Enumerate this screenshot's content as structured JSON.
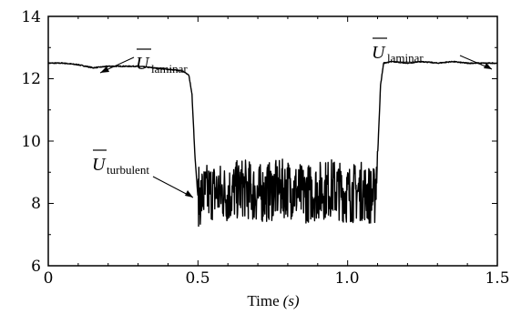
{
  "chart_data": {
    "type": "line",
    "title": "",
    "xlabel": "Time",
    "xlabel_unit": "(s)",
    "ylabel": "",
    "xlim": [
      0,
      1.5
    ],
    "ylim": [
      6,
      14
    ],
    "x_ticks": [
      "0",
      "0.5",
      "1.0",
      "1.5"
    ],
    "y_ticks": [
      "6",
      "8",
      "10",
      "12",
      "14"
    ],
    "grid": false,
    "series": [
      {
        "x": [
          0,
          0.05,
          0.1,
          0.15,
          0.2,
          0.25,
          0.3,
          0.35,
          0.4,
          0.45,
          0.47,
          0.48,
          0.49,
          0.5,
          0.55,
          0.6,
          0.65,
          0.7,
          0.75,
          0.8,
          0.85,
          0.9,
          0.95,
          1.0,
          1.05,
          1.09,
          1.1,
          1.11,
          1.12,
          1.15,
          1.2,
          1.25,
          1.3,
          1.35,
          1.4,
          1.45,
          1.5
        ],
        "y": [
          12.5,
          12.5,
          12.45,
          12.35,
          12.4,
          12.4,
          12.4,
          12.35,
          12.3,
          12.25,
          12.1,
          11.5,
          9.5,
          8.2,
          8.4,
          8.3,
          8.5,
          8.3,
          8.4,
          8.5,
          8.3,
          8.4,
          8.5,
          8.3,
          8.4,
          8.2,
          9.5,
          11.8,
          12.5,
          12.55,
          12.5,
          12.55,
          12.5,
          12.55,
          12.5,
          12.5,
          12.5
        ],
        "fluctuation_amplitude": 1.2,
        "fluctuation_range": [
          0.5,
          1.1
        ]
      }
    ],
    "annotations": [
      {
        "symbol": "U",
        "subscript": "laminar",
        "points_to": [
          0.2,
          12.4
        ]
      },
      {
        "symbol": "U",
        "subscript": "turbulent",
        "points_to": [
          0.5,
          8.4
        ]
      },
      {
        "symbol": "U",
        "subscript": "laminar",
        "points_to": [
          1.5,
          12.5
        ]
      }
    ]
  }
}
